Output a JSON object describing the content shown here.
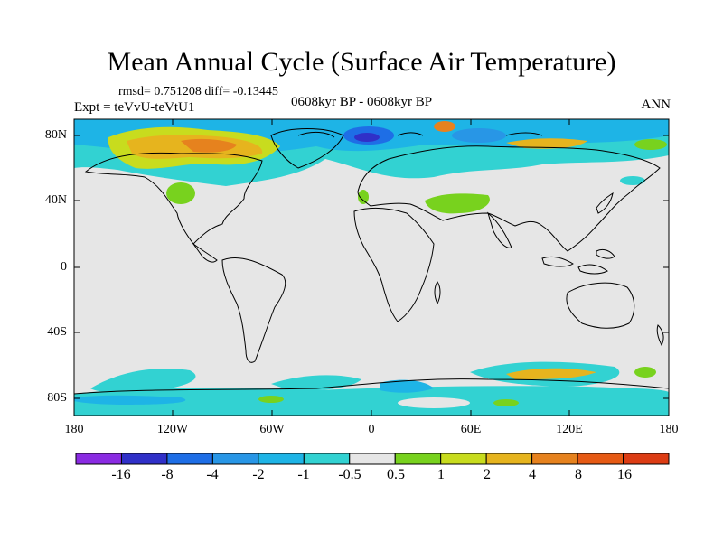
{
  "title": "Mean Annual Cycle (Surface Air Temperature)",
  "stats": "rmsd= 0.751208 diff= -0.13445",
  "experiment": "Expt = teVvU-teVtU1",
  "period": "0608kyr BP - 0608kyr BP",
  "season": "ANN",
  "lat_labels": [
    "80N",
    "40N",
    "0",
    "40S",
    "80S"
  ],
  "lon_labels": [
    "180",
    "120W",
    "60W",
    "0",
    "60E",
    "120E",
    "180"
  ],
  "colorbar": {
    "colors": [
      "#8a2be2",
      "#3030c8",
      "#1e6ee6",
      "#2896e6",
      "#1eb4e6",
      "#32d2d2",
      "#e6e6e6",
      "#78d21e",
      "#c8dc1e",
      "#e6b41e",
      "#e6821e",
      "#e65a14",
      "#dc3c14"
    ],
    "labels": [
      "-16",
      "-8",
      "-4",
      "-2",
      "-1",
      "-0.5",
      "0.5",
      "1",
      "2",
      "4",
      "8",
      "16"
    ]
  }
}
